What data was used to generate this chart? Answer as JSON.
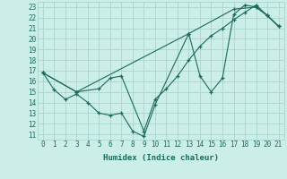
{
  "xlabel": "Humidex (Indice chaleur)",
  "bg_color": "#cceee8",
  "grid_color": "#aad4ce",
  "line_color": "#1a6b5a",
  "xlim": [
    -0.5,
    21.5
  ],
  "ylim": [
    10.5,
    23.5
  ],
  "xticks": [
    0,
    1,
    2,
    3,
    4,
    5,
    6,
    7,
    8,
    9,
    10,
    11,
    12,
    13,
    14,
    15,
    16,
    17,
    18,
    19,
    20,
    21
  ],
  "yticks": [
    11,
    12,
    13,
    14,
    15,
    16,
    17,
    18,
    19,
    20,
    21,
    22,
    23
  ],
  "line1_x": [
    0,
    1,
    2,
    3,
    4,
    5,
    6,
    7,
    8,
    9,
    10,
    13,
    14,
    15,
    16,
    17,
    18,
    19,
    20,
    21
  ],
  "line1_y": [
    16.8,
    15.2,
    14.3,
    14.8,
    14.0,
    13.0,
    12.8,
    13.0,
    11.3,
    10.8,
    13.8,
    20.5,
    16.5,
    15.0,
    16.3,
    22.3,
    23.2,
    23.0,
    22.2,
    21.2
  ],
  "line2_x": [
    0,
    3,
    5,
    6,
    7,
    9,
    10,
    11,
    12,
    13,
    14,
    15,
    16,
    17,
    18,
    19,
    20,
    21
  ],
  "line2_y": [
    16.8,
    15.0,
    15.3,
    16.3,
    16.5,
    11.3,
    14.3,
    15.3,
    16.5,
    18.0,
    19.3,
    20.3,
    21.0,
    21.8,
    22.5,
    23.2,
    22.2,
    21.2
  ],
  "line3_x": [
    0,
    3,
    13,
    17,
    19,
    20,
    21
  ],
  "line3_y": [
    16.8,
    15.0,
    20.5,
    22.8,
    23.0,
    22.2,
    21.2
  ]
}
